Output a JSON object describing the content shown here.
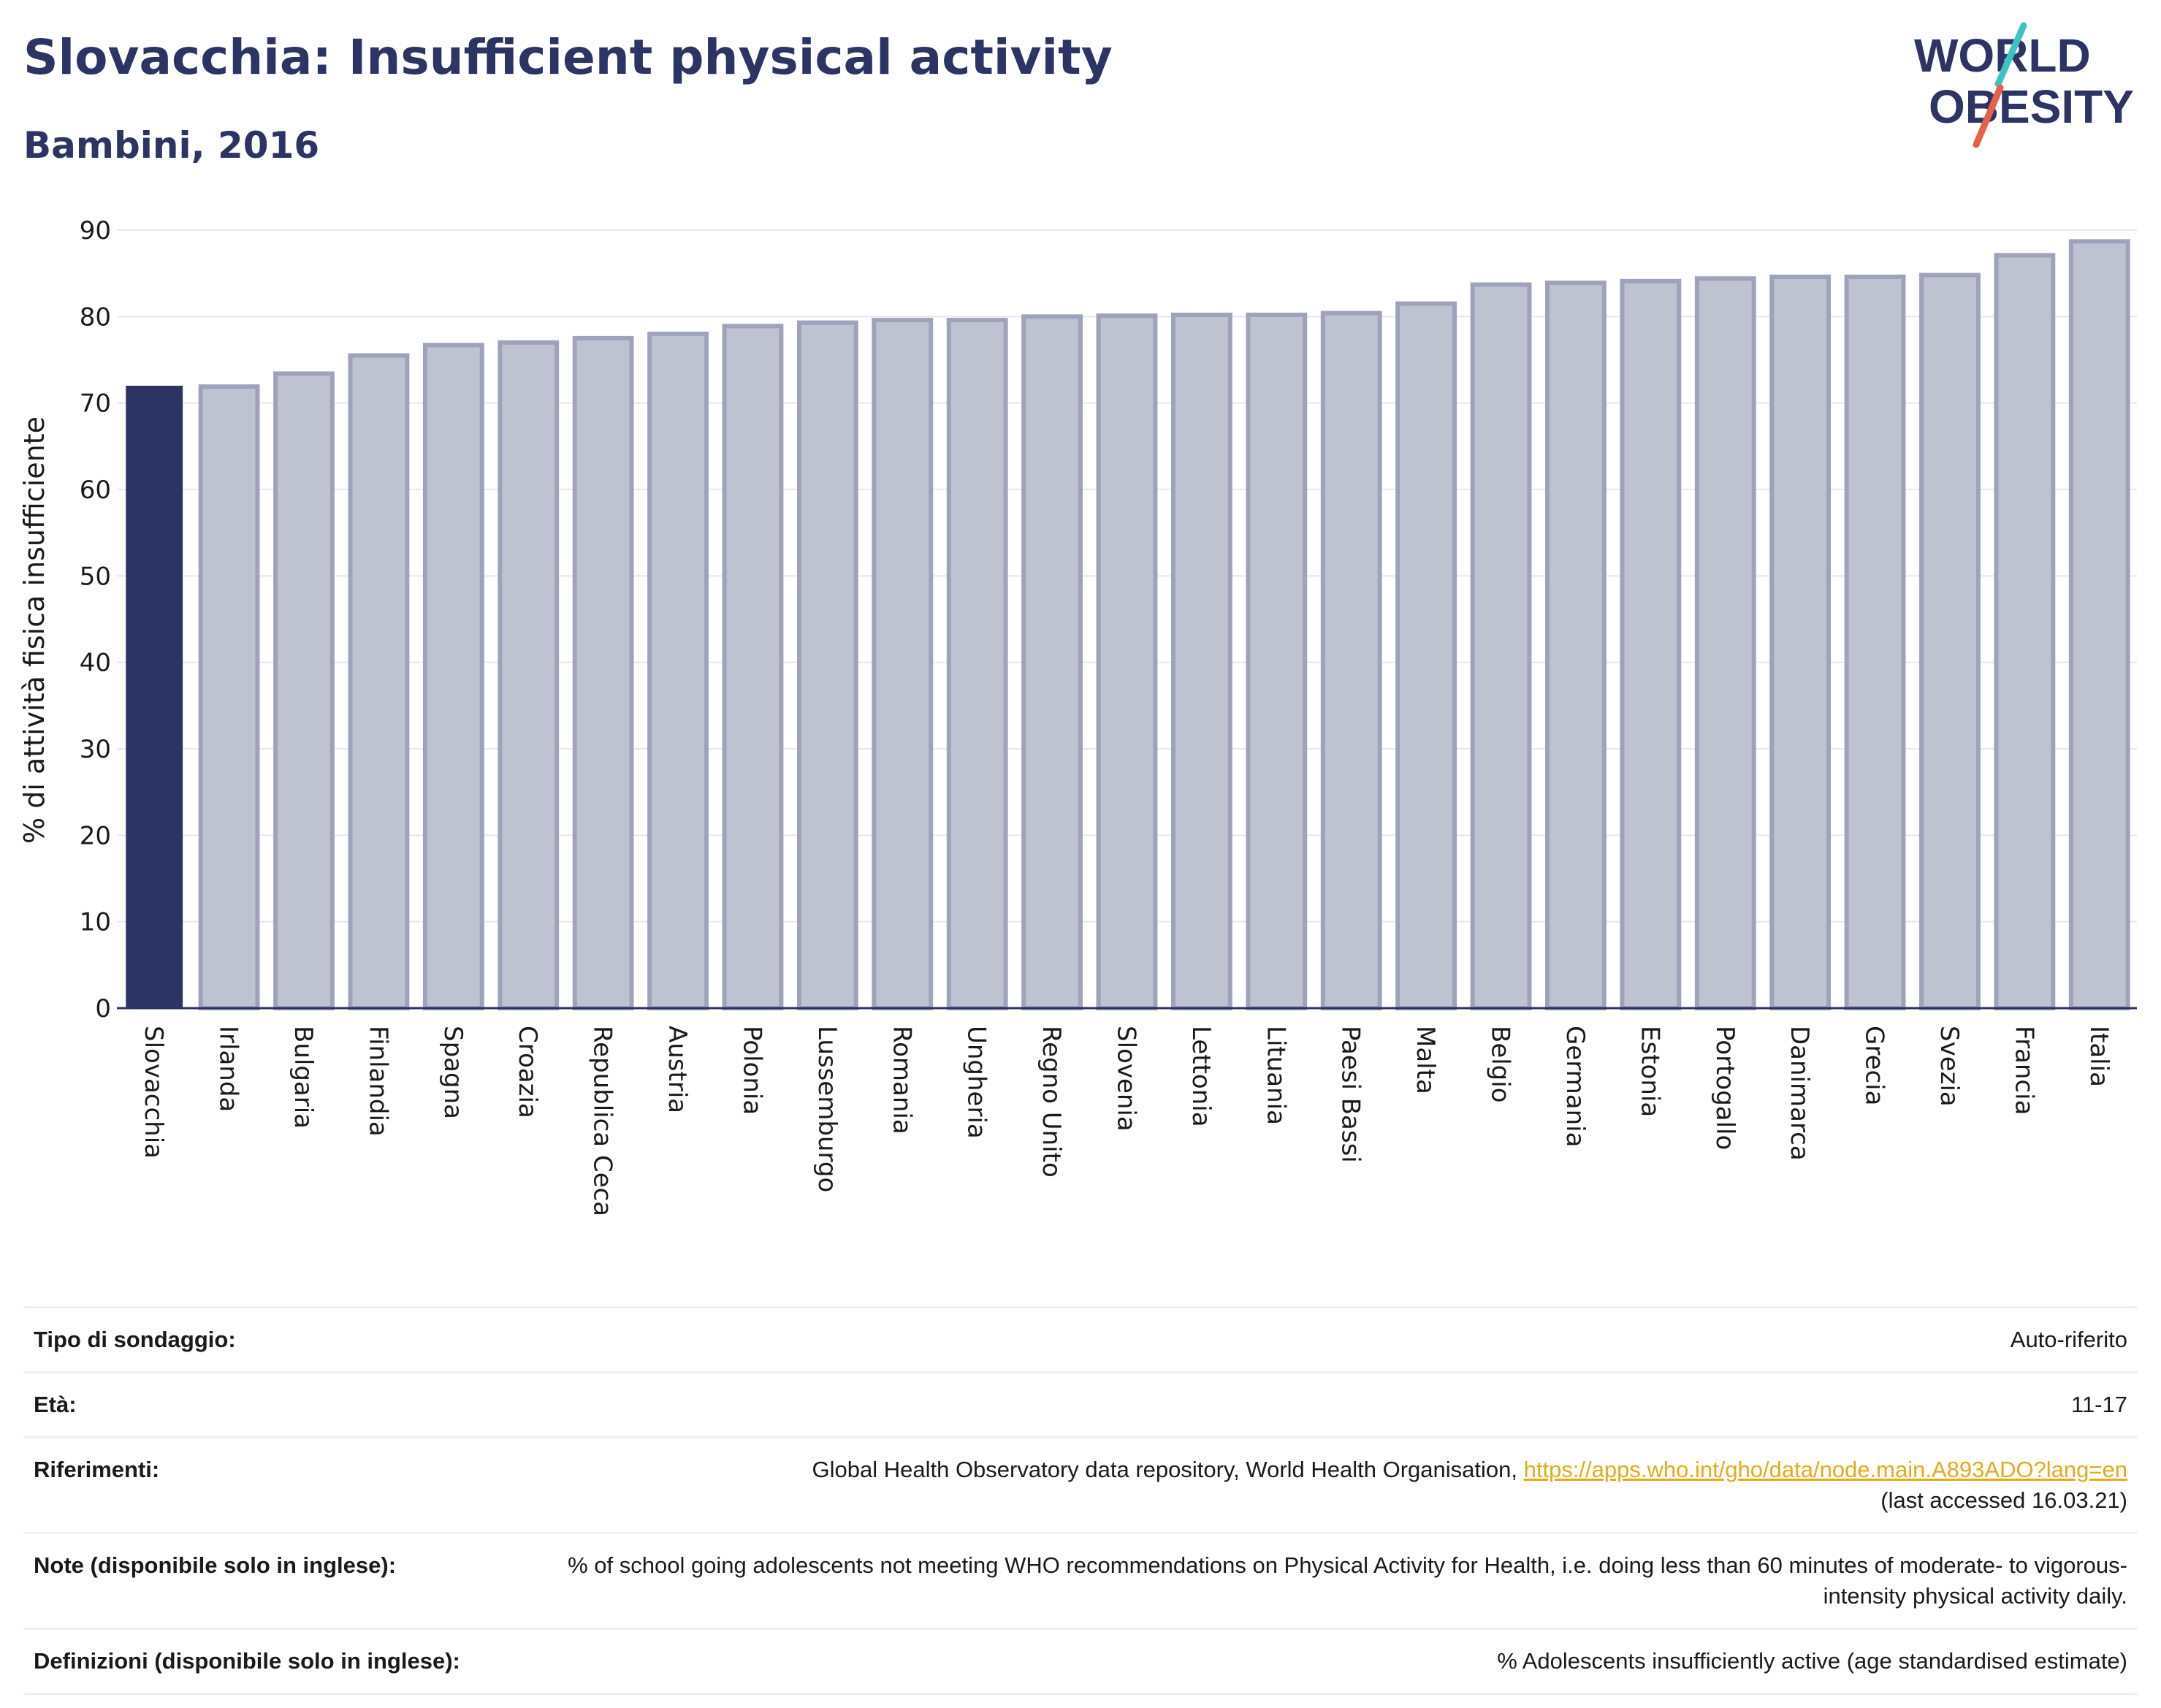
{
  "header": {
    "title": "Slovacchia: Insufficient physical activity",
    "subtitle": "Bambini, 2016",
    "logo_text_top": "WORLD",
    "logo_text_bottom": "OBESITY"
  },
  "colors": {
    "highlight": "#2b3463",
    "bar_fill": "#bfc2d0",
    "bar_stroke": "#9ea2ba",
    "grid": "#e6e8ee",
    "text": "#2b3463",
    "link": "#e8a818",
    "logo_teal": "#3ec3c3",
    "logo_coral": "#e8604c"
  },
  "chart_data": {
    "type": "bar",
    "ylabel": "% di attività fisica insufficiente",
    "xlabel": "",
    "ylim": [
      0,
      90
    ],
    "yticks": [
      0,
      10,
      20,
      30,
      40,
      50,
      60,
      70,
      80,
      90
    ],
    "grid": true,
    "highlight_category": "Slovacchia",
    "categories": [
      "Slovacchia",
      "Irlanda",
      "Bulgaria",
      "Finlandia",
      "Spagna",
      "Croazia",
      "Republica Ceca",
      "Austria",
      "Polonia",
      "Lussemburgo",
      "Romania",
      "Ungheria",
      "Regno Unito",
      "Slovenia",
      "Lettonia",
      "Lituania",
      "Paesi Bassi",
      "Malta",
      "Belgio",
      "Germania",
      "Estonia",
      "Portogallo",
      "Danimarca",
      "Grecia",
      "Svezia",
      "Francia",
      "Italia"
    ],
    "values": [
      72.0,
      71.9,
      73.4,
      75.5,
      76.7,
      77.0,
      77.5,
      78.0,
      78.9,
      79.3,
      79.6,
      79.6,
      80.0,
      80.1,
      80.2,
      80.2,
      80.4,
      81.5,
      83.7,
      83.9,
      84.1,
      84.4,
      84.6,
      84.6,
      84.8,
      87.1,
      88.7
    ]
  },
  "info": {
    "rows": [
      {
        "label": "Tipo di sondaggio:",
        "value": "Auto-riferito"
      },
      {
        "label": "Età:",
        "value": "11-17"
      },
      {
        "label": "Riferimenti:",
        "value": "Global Health Observatory data repository, World Health Organisation,",
        "link": "https://apps.who.int/gho/data/node.main.A893ADO?lang=en",
        "value_after": "(last accessed 16.03.21)"
      },
      {
        "label": "Note (disponibile solo in inglese):",
        "value": "% of school going adolescents not meeting WHO recommendations on Physical Activity for Health, i.e. doing less than 60 minutes of moderate- to vigorous-intensity physical activity daily."
      },
      {
        "label": "Definizioni (disponibile solo in inglese):",
        "value": "% Adolescents insufficiently active (age standardised estimate)"
      }
    ]
  }
}
